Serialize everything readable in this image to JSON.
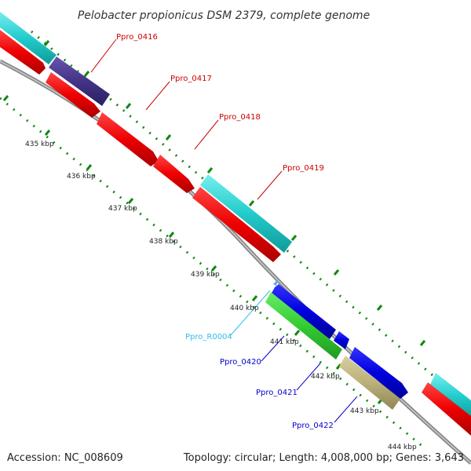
{
  "title": "Pelobacter propionicus DSM 2379, complete genome",
  "footer": {
    "accession": "Accession: NC_008609",
    "topology": "Topology: circular; Length: 4,008,000 bp; Genes: 3,643"
  },
  "scale_labels": [
    "435 kbp",
    "436 kbp",
    "437 kbp",
    "438 kbp",
    "439 kbp",
    "440 kbp",
    "441 kbp",
    "442 kbp",
    "443 kbp",
    "444 kbp"
  ],
  "gene_labels": [
    {
      "text": "Ppro_0416",
      "color": "#cc0000"
    },
    {
      "text": "Ppro_0417",
      "color": "#cc0000"
    },
    {
      "text": "Ppro_0418",
      "color": "#cc0000"
    },
    {
      "text": "Ppro_0419",
      "color": "#cc0000"
    },
    {
      "text": "Ppro_R0004",
      "color": "#33bbee"
    },
    {
      "text": "Ppro_0420",
      "color": "#0000cc"
    },
    {
      "text": "Ppro_0421",
      "color": "#0000cc"
    },
    {
      "text": "Ppro_0422",
      "color": "#0000cc"
    }
  ],
  "colors": {
    "cds_forward": "#ee0000",
    "cds_highlight": "#22cccc",
    "cds_dark": "#443388",
    "cds_blue": "#0000dd",
    "cds_green": "#33cc33",
    "cds_khaki": "#bbb07a",
    "rna": "#44aaff",
    "backbone": "#888888",
    "tick": "#118811"
  }
}
